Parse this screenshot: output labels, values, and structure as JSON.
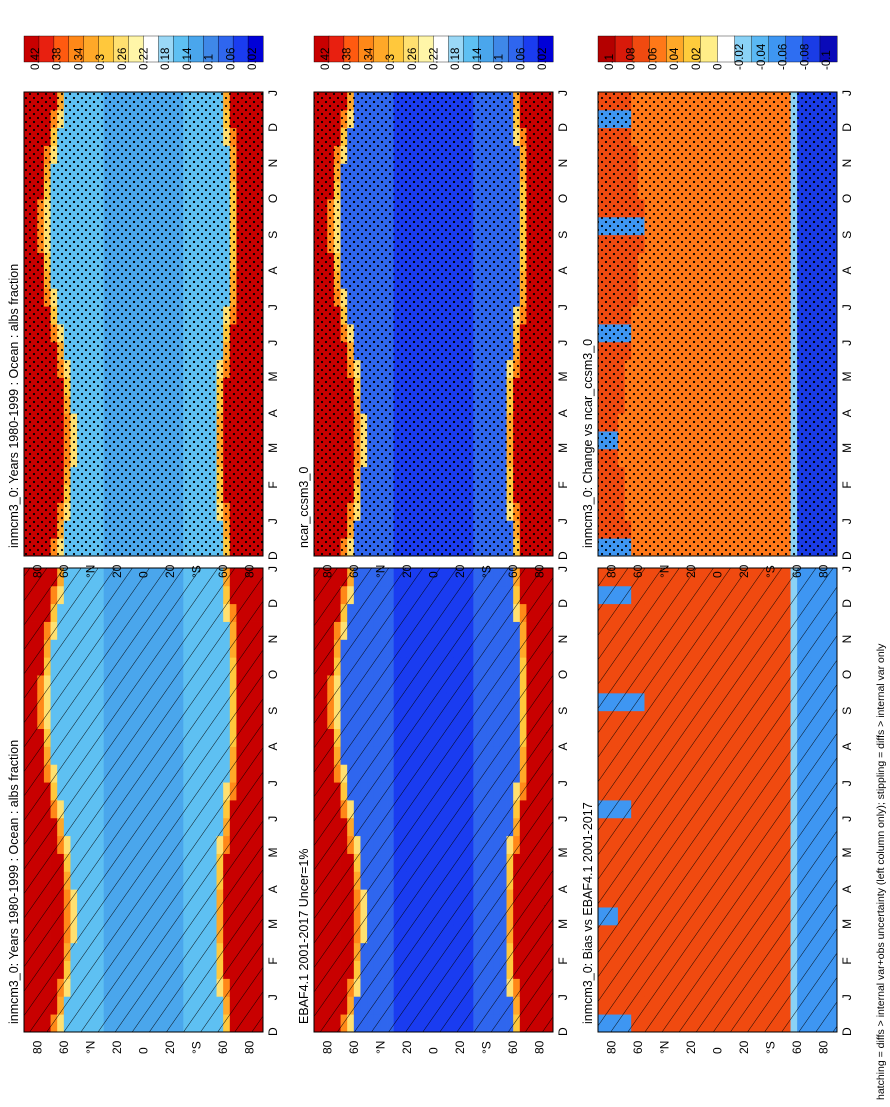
{
  "figure": {
    "footnote": "hatching = diffs > internal var+obs uncertainty (left column only); stippling = diffs > internal var only"
  },
  "colors": {
    "abs_scale": [
      "#0000d8",
      "#1a3cf0",
      "#2f66ee",
      "#3f88e8",
      "#4aa6ec",
      "#5ec0f2",
      "#9ad8f6",
      "#ffffff",
      "#fff6a8",
      "#ffe070",
      "#ffc83c",
      "#ffa828",
      "#ff8818",
      "#ff5a10",
      "#e82010",
      "#c80000"
    ],
    "diff_scale": [
      "#0a0ab8",
      "#1a3ce6",
      "#2e6ef2",
      "#3e96f2",
      "#5ab8f4",
      "#8ad2f6",
      "#ffffff",
      "#ffee88",
      "#ffcc3c",
      "#ffa828",
      "#ff7818",
      "#f04a10",
      "#d81a0a",
      "#b40000"
    ]
  },
  "axis_labels": {
    "lat_ticks": [
      "80",
      "60",
      "°N",
      "20",
      "0",
      "20",
      "°S",
      "60",
      "80"
    ],
    "month_ticks": [
      "D",
      "J",
      "F",
      "M",
      "A",
      "M",
      "J",
      "J",
      "A",
      "S",
      "O",
      "N",
      "D",
      "J"
    ]
  },
  "chart_data": [
    {
      "id": "p1",
      "type": "heatmap",
      "title": "inmcm3_0: Years 1980-1999 : Ocean : albs fraction",
      "x": [
        "D",
        "J",
        "F",
        "M",
        "A",
        "M",
        "J",
        "J",
        "A",
        "S",
        "O",
        "N",
        "D",
        "J"
      ],
      "y_range": [
        90,
        -90
      ],
      "y_units": "latitude",
      "colorbar_ticks": [
        "0.42",
        "0.38",
        "0.34",
        "0.3",
        "0.26",
        "0.22",
        "0.18",
        "0.14",
        "0.1",
        "0.06",
        "0.02"
      ],
      "field": "abs",
      "pattern": "hatch",
      "grid": [
        [
          0.45,
          0.2,
          0.45
        ],
        [
          0.45,
          0.09,
          0.43
        ]
      ],
      "pattern_rows": [
        "both",
        "none"
      ]
    },
    {
      "id": "p2",
      "type": "heatmap",
      "title": "inmcm3_0: Years 1980-1999 : Ocean : albs fraction",
      "x": [
        "D",
        "J",
        "F",
        "M",
        "A",
        "M",
        "J",
        "J",
        "A",
        "S",
        "O",
        "N",
        "D",
        "J"
      ],
      "y_range": [
        90,
        -90
      ],
      "y_units": "latitude",
      "colorbar_ticks": [
        "0.42",
        "0.38",
        "0.34",
        "0.3",
        "0.26",
        "0.22",
        "0.18",
        "0.14",
        "0.1",
        "0.06",
        "0.02"
      ],
      "field": "abs",
      "pattern": "stipple"
    },
    {
      "id": "p3",
      "type": "heatmap",
      "title": "EBAF4.1 2001-2017 Uncer=1%",
      "x": [
        "D",
        "J",
        "F",
        "M",
        "A",
        "M",
        "J",
        "J",
        "A",
        "S",
        "O",
        "N",
        "D",
        "J"
      ],
      "y_range": [
        90,
        -90
      ],
      "y_units": "latitude",
      "colorbar_ticks": [
        "0.42",
        "0.38",
        "0.34",
        "0.3",
        "0.26",
        "0.22",
        "0.18",
        "0.14",
        "0.1",
        "0.06",
        "0.02"
      ],
      "field": "abs2",
      "pattern": "hatch"
    },
    {
      "id": "p4",
      "type": "heatmap",
      "title": "ncar_ccsm3_0",
      "x": [
        "D",
        "J",
        "F",
        "M",
        "A",
        "M",
        "J",
        "J",
        "A",
        "S",
        "O",
        "N",
        "D",
        "J"
      ],
      "y_range": [
        90,
        -90
      ],
      "y_units": "latitude",
      "colorbar_ticks": [
        "0.42",
        "0.38",
        "0.34",
        "0.3",
        "0.26",
        "0.22",
        "0.18",
        "0.14",
        "0.1",
        "0.06",
        "0.02"
      ],
      "field": "abs2",
      "pattern": "stipple"
    },
    {
      "id": "p5",
      "type": "heatmap",
      "title": "inmcm3_0: Bias vs EBAF4.1 2001-2017",
      "x": [
        "D",
        "J",
        "F",
        "M",
        "A",
        "M",
        "J",
        "J",
        "A",
        "S",
        "O",
        "N",
        "D",
        "J"
      ],
      "y_range": [
        90,
        -90
      ],
      "y_units": "latitude",
      "colorbar_ticks": [
        "0.1",
        "0.08",
        "0.06",
        "0.04",
        "0.02",
        "0",
        "-0.02",
        "-0.04",
        "-0.06",
        "-0.08",
        "-0.1"
      ],
      "field": "diff",
      "pattern": "hatch"
    },
    {
      "id": "p6",
      "type": "heatmap",
      "title": "inmcm3_0: Change vs ncar_ccsm3_0",
      "x": [
        "D",
        "J",
        "F",
        "M",
        "A",
        "M",
        "J",
        "J",
        "A",
        "S",
        "O",
        "N",
        "D",
        "J"
      ],
      "y_range": [
        90,
        -90
      ],
      "y_units": "latitude",
      "colorbar_ticks": [
        "0.1",
        "0.08",
        "0.06",
        "0.04",
        "0.02",
        "0",
        "-0.02",
        "-0.04",
        "-0.06",
        "-0.08",
        "-0.1"
      ],
      "field": "diff2",
      "pattern": "stipple"
    }
  ]
}
